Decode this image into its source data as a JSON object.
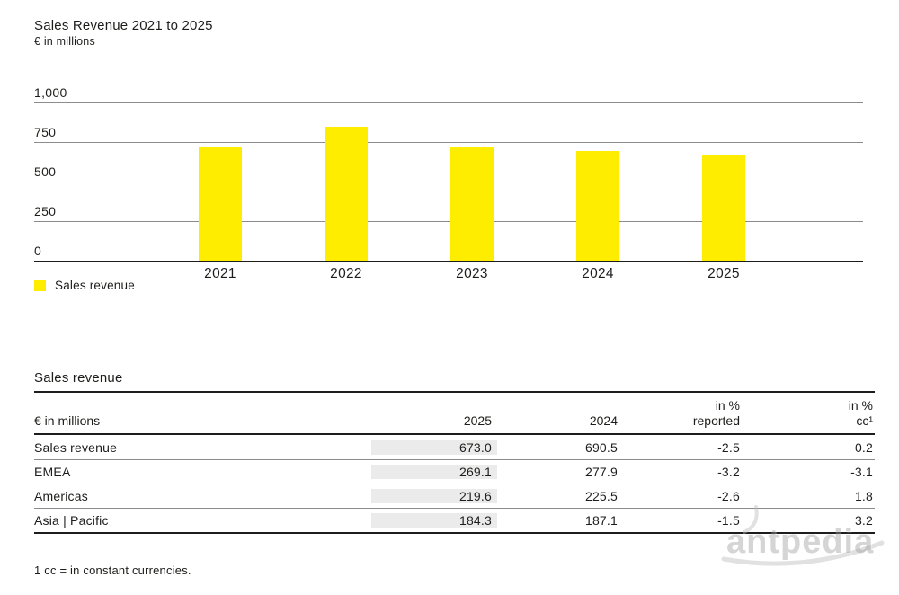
{
  "header": {
    "title": "Sales Revenue 2021 to 2025",
    "subtitle": "€ in millions"
  },
  "chart_data": {
    "type": "bar",
    "title": "Sales Revenue 2021 to 2025",
    "unit_label": "€ in millions",
    "categories": [
      "2021",
      "2022",
      "2023",
      "2024",
      "2025"
    ],
    "series": [
      {
        "name": "Sales revenue",
        "values": [
          720,
          845,
          717,
          690.5,
          673.0
        ]
      }
    ],
    "ylim": [
      0,
      1000
    ],
    "yticks": [
      0,
      250,
      500,
      750,
      1000
    ],
    "ytick_labels": [
      "0",
      "250",
      "500",
      "750",
      "1,000"
    ],
    "grid": true,
    "legend_position": "bottom-left",
    "bar_color": "#ffed00"
  },
  "table": {
    "section_title": "Sales revenue",
    "unit_header": "€ in millions",
    "col_headers": [
      {
        "line1": "",
        "line2": "2025"
      },
      {
        "line1": "",
        "line2": "2024"
      },
      {
        "line1": "in %",
        "line2": "reported"
      },
      {
        "line1": "in %",
        "line2": "cc¹"
      }
    ],
    "rows": [
      {
        "label": "Sales revenue",
        "values": [
          "673.0",
          "690.5",
          "-2.5",
          "0.2"
        ]
      },
      {
        "label": "EMEA",
        "values": [
          "269.1",
          "277.9",
          "-3.2",
          "-3.1"
        ]
      },
      {
        "label": "Americas",
        "values": [
          "219.6",
          "225.5",
          "-2.6",
          "1.8"
        ]
      },
      {
        "label": "Asia | Pacific",
        "values": [
          "184.3",
          "187.1",
          "-1.5",
          "3.2"
        ]
      }
    ],
    "highlighted_column": "2025",
    "highlight_color": "#ebebeb"
  },
  "footnote": "1 cc = in constant currencies.",
  "watermark": {
    "text": "antpedia",
    "color": "#b5b5b5"
  }
}
